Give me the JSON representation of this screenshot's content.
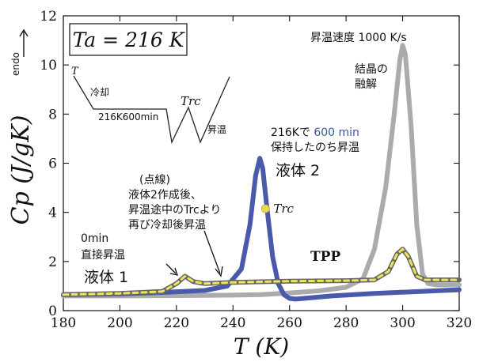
{
  "chart_data": {
    "type": "line",
    "xlabel": "T (K)",
    "ylabel": "Cp (J/gK)",
    "endo_label": "endo",
    "xlim": [
      180,
      320
    ],
    "ylim": [
      0,
      12
    ],
    "xticks": [
      180,
      200,
      220,
      240,
      260,
      280,
      300,
      320
    ],
    "yticks": [
      0,
      2,
      4,
      6,
      8,
      10,
      12
    ],
    "grid": false,
    "series": [
      {
        "name": "",
        "color": "#a9abae",
        "x": [
          180,
          200,
          220,
          240,
          250,
          260,
          270,
          280,
          286,
          290,
          294,
          297,
          299,
          300,
          301,
          303,
          305,
          307,
          309,
          312,
          320
        ],
        "y": [
          0.6,
          0.6,
          0.61,
          0.63,
          0.65,
          0.72,
          0.8,
          0.95,
          1.3,
          2.5,
          5.0,
          8.0,
          10.2,
          10.8,
          10.4,
          7.5,
          3.5,
          1.5,
          1.1,
          1.05,
          1.05
        ]
      },
      {
        "name": "",
        "color": "#4a5aaa",
        "x": [
          180,
          200,
          215,
          230,
          238,
          243,
          246,
          248,
          249.5,
          250.5,
          252,
          254,
          256,
          258,
          260,
          262,
          265,
          275,
          290,
          320
        ],
        "y": [
          0.65,
          0.68,
          0.74,
          0.82,
          1.0,
          1.7,
          3.5,
          5.5,
          6.2,
          5.8,
          4.2,
          2.2,
          1.1,
          0.65,
          0.5,
          0.47,
          0.5,
          0.6,
          0.7,
          0.85
        ]
      },
      {
        "name": "",
        "color": "#666666",
        "x": [
          180,
          200,
          215,
          220,
          223,
          226,
          230,
          240,
          260,
          280,
          290,
          295,
          298,
          300,
          302,
          305,
          308,
          320
        ],
        "y": [
          0.65,
          0.7,
          0.78,
          1.1,
          1.4,
          1.18,
          1.1,
          1.15,
          1.2,
          1.22,
          1.25,
          1.6,
          2.3,
          2.5,
          2.2,
          1.4,
          1.25,
          1.25
        ]
      },
      {
        "name": "",
        "color": "#ece55a",
        "dashed": true,
        "x": [
          180,
          200,
          215,
          220,
          223,
          226,
          230,
          240,
          260,
          280,
          290,
          295,
          298,
          300,
          302,
          305,
          308,
          320
        ],
        "y": [
          0.65,
          0.7,
          0.78,
          1.1,
          1.4,
          1.18,
          1.1,
          1.15,
          1.2,
          1.22,
          1.25,
          1.6,
          2.3,
          2.5,
          2.2,
          1.4,
          1.25,
          1.25
        ]
      }
    ],
    "markers": [
      {
        "label": "Trc",
        "x": 251.5,
        "y": 4.15,
        "color": "#e8d84a"
      }
    ],
    "annotations": {
      "ta_box": "Ta = 216 K",
      "heating_rate": "昇温速度 1000 K/s",
      "melting": [
        "結晶の",
        "融解"
      ],
      "hold": [
        "216Kで 600 min",
        "保持したのち昇温"
      ],
      "hold_min_highlight": "600 min",
      "liquid2": "液体 2",
      "dashed_note": [
        "(点線)",
        "液体2作成後、",
        "昇温途中のTrcより",
        "再び冷却後昇温"
      ],
      "zero_min": [
        "0min",
        "直接昇温"
      ],
      "liquid1": "液体 1",
      "tpp": "TPP",
      "inset": {
        "t_label": "T",
        "cooling": "冷却",
        "hold": "216K600min",
        "trc": "Trc",
        "heating": "昇温"
      }
    }
  },
  "colors": {
    "axis": "#111111",
    "highlight_blue": "#3a5a9a",
    "inset_line": "#222222"
  }
}
